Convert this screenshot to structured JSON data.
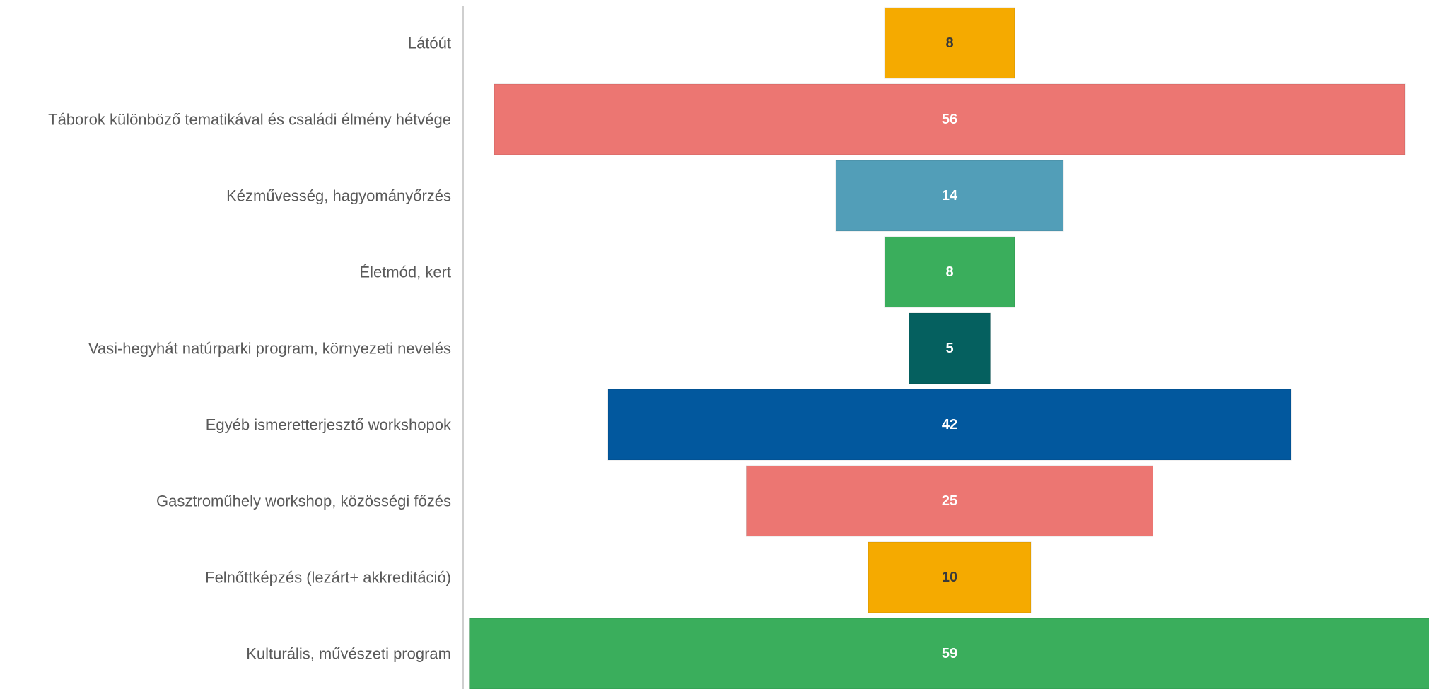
{
  "chart_data": {
    "type": "bar",
    "orientation": "horizontal-centered",
    "categories": [
      "Látóút",
      "Táborok különböző tematikával és családi élmény hétvége",
      "Kézművesség, hagyományőrzés",
      "Életmód, kert",
      "Vasi-hegyhát natúrparki program, környezeti nevelés",
      "Egyéb ismeretterjesztő workshopok",
      "Gasztroműhely workshop, közösségi főzés",
      "Felnőttképzés (lezárt+ akkreditáció)",
      "Kulturális, művészeti program"
    ],
    "values": [
      8,
      56,
      14,
      8,
      5,
      42,
      25,
      10,
      59
    ],
    "colors": [
      "#F5AA00",
      "#EC7672",
      "#529EB8",
      "#3AAE5C",
      "#05605F",
      "#02589E",
      "#EC7672",
      "#F5AA00",
      "#3AAE5C"
    ],
    "label_colors": [
      "#3a3a3a",
      "#ffffff",
      "#ffffff",
      "#ffffff",
      "#ffffff",
      "#ffffff",
      "#ffffff",
      "#3a3a3a",
      "#ffffff"
    ],
    "title": "",
    "xlabel": "",
    "ylabel": "",
    "grid": false,
    "legend": "none"
  }
}
